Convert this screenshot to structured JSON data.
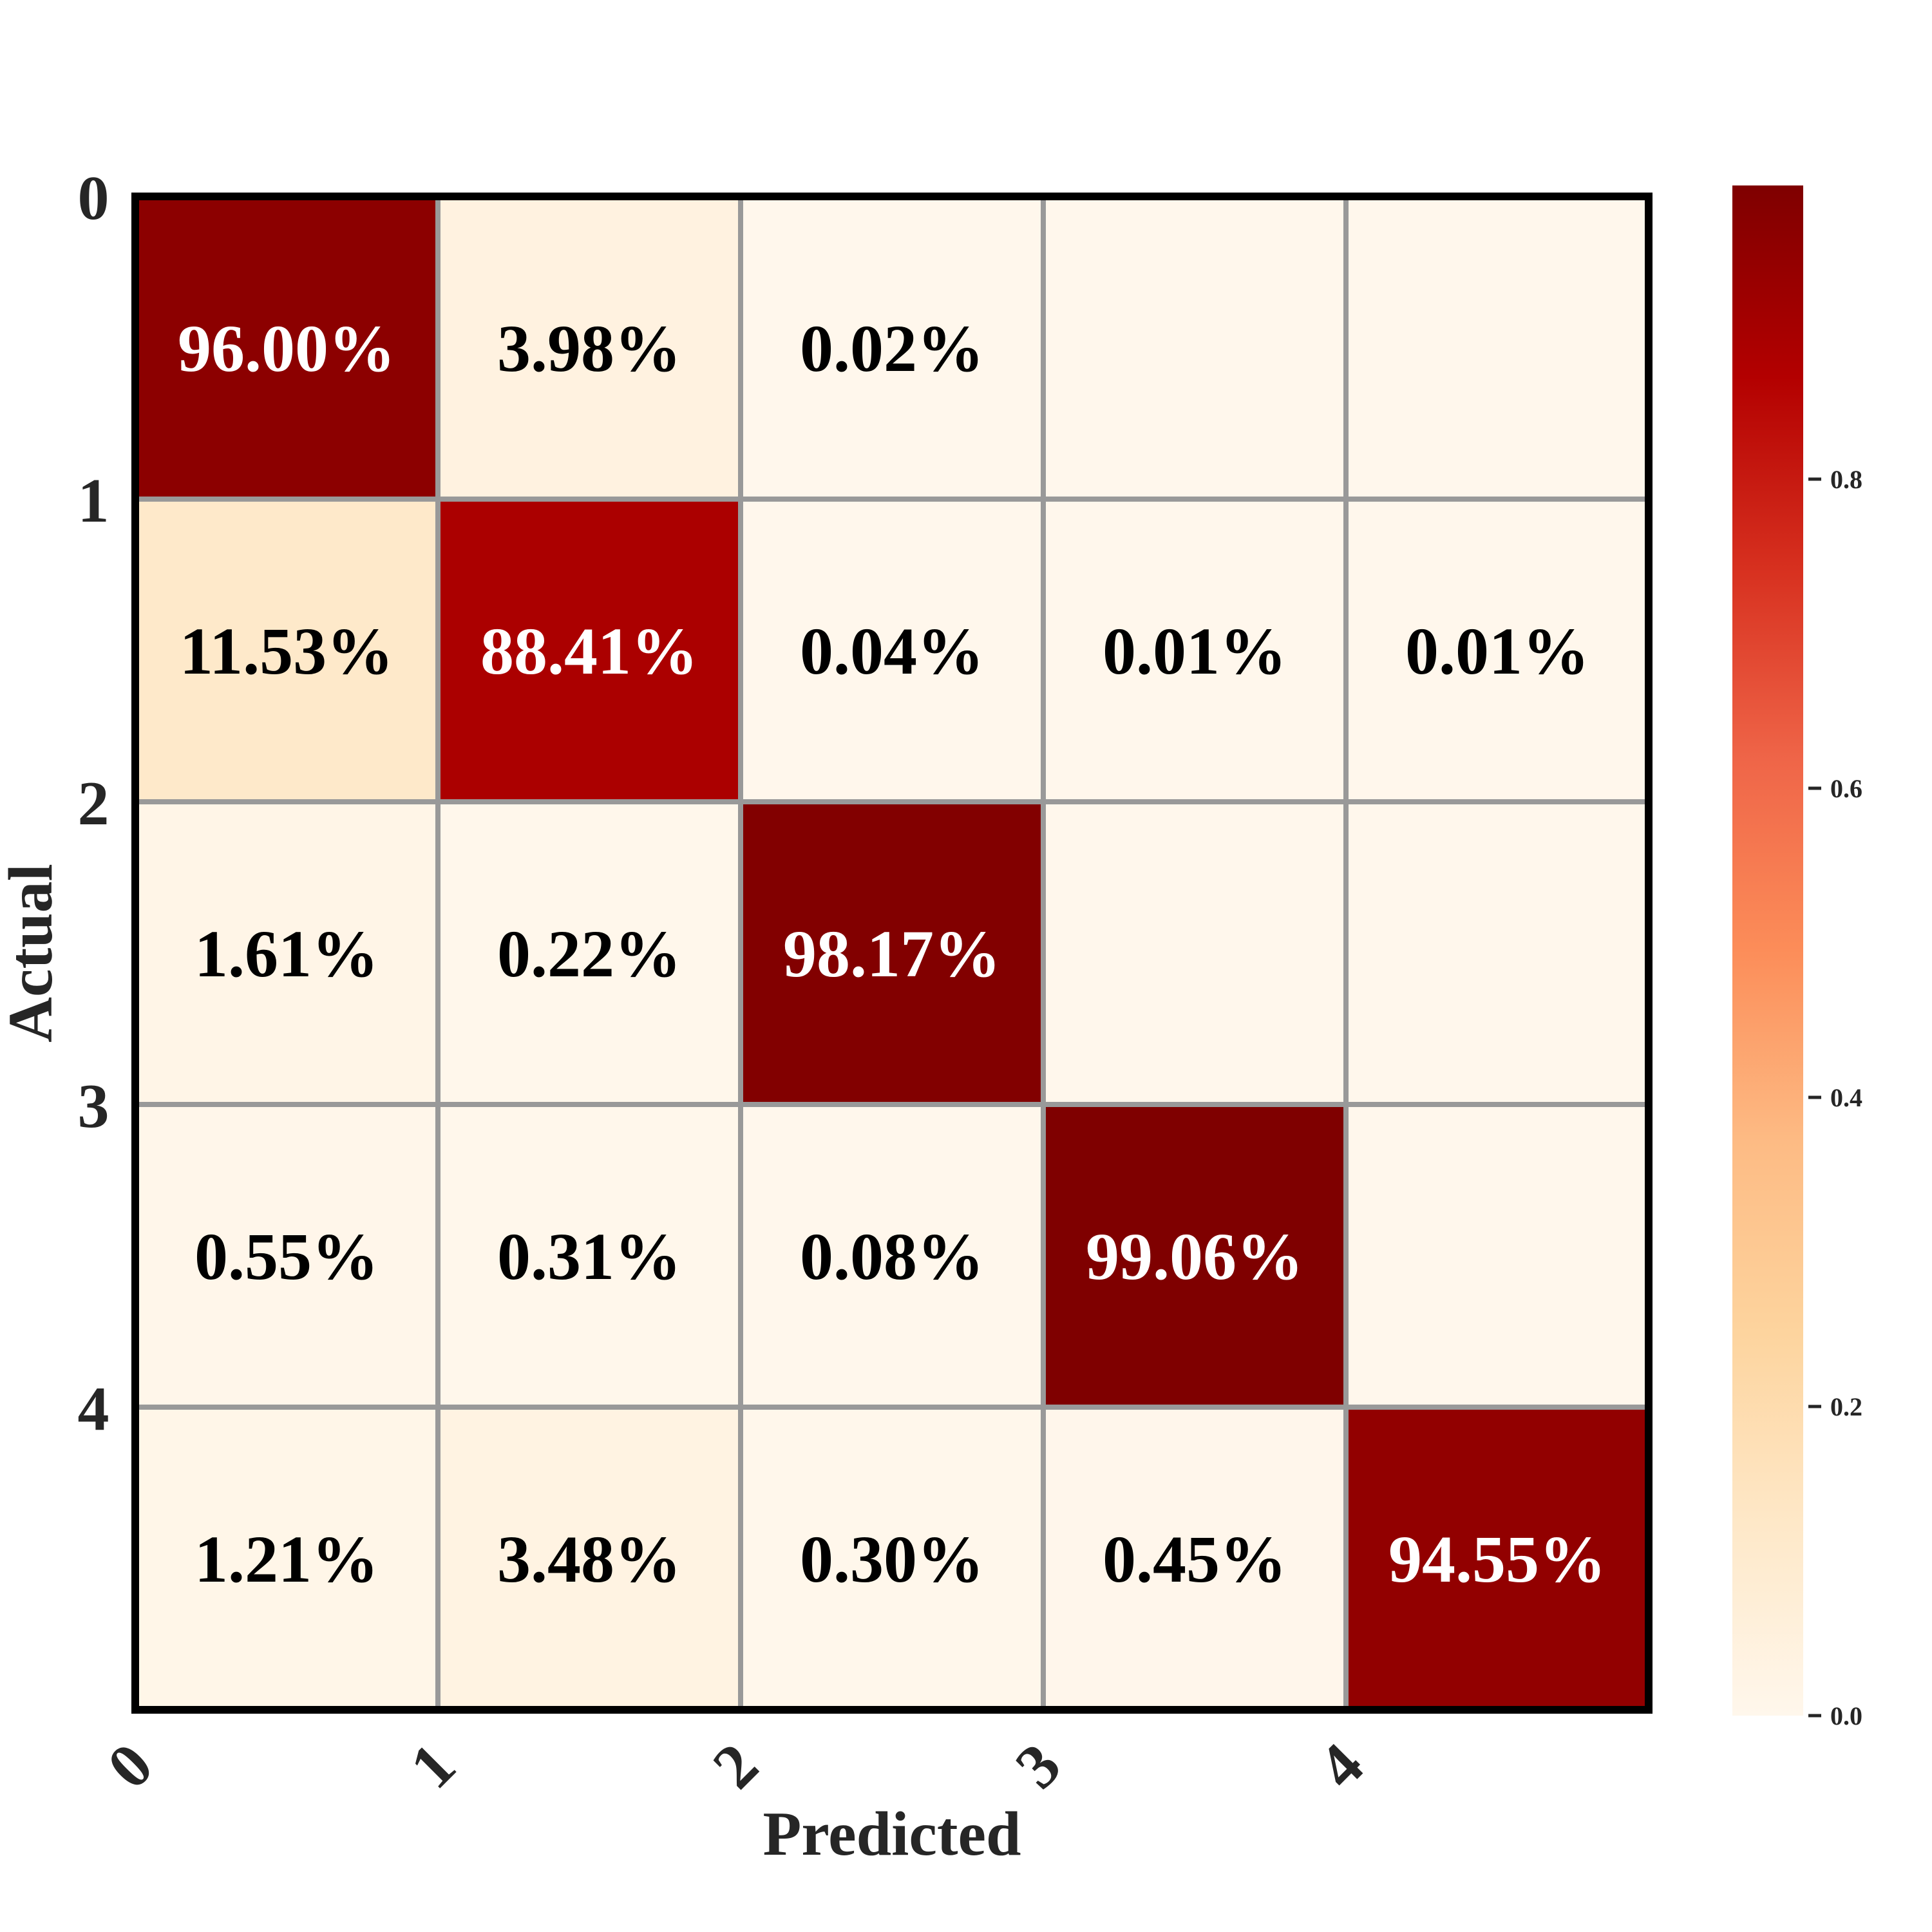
{
  "chart_data": {
    "type": "heatmap",
    "xlabel": "Predicted",
    "ylabel": "Actual",
    "x_tick_labels": [
      "0",
      "1",
      "2",
      "3",
      "4"
    ],
    "y_tick_labels": [
      "0",
      "1",
      "2",
      "3",
      "4"
    ],
    "values": [
      [
        0.96,
        0.0398,
        0.0002,
        0.0,
        0.0
      ],
      [
        0.1153,
        0.8841,
        0.0004,
        0.0001,
        0.0001
      ],
      [
        0.0161,
        0.0022,
        0.9817,
        0.0,
        0.0
      ],
      [
        0.0055,
        0.0031,
        0.0008,
        0.9906,
        0.0
      ],
      [
        0.0121,
        0.0348,
        0.003,
        0.0045,
        0.9455
      ]
    ],
    "cell_labels": [
      [
        "96.00%",
        "3.98%",
        "0.02%",
        "",
        ""
      ],
      [
        "11.53%",
        "88.41%",
        "0.04%",
        "0.01%",
        "0.01%"
      ],
      [
        "1.61%",
        "0.22%",
        "98.17%",
        "",
        ""
      ],
      [
        "0.55%",
        "0.31%",
        "0.08%",
        "99.06%",
        ""
      ],
      [
        "1.21%",
        "3.48%",
        "0.30%",
        "0.45%",
        "94.55%"
      ]
    ],
    "colorbar": {
      "colormap": "OrRd",
      "range": [
        0.0,
        0.99
      ],
      "ticks": [
        0.0,
        0.2,
        0.4,
        0.6,
        0.8
      ],
      "tick_labels": [
        "0.0",
        "0.2",
        "0.4",
        "0.6",
        "0.8"
      ]
    },
    "colors": {
      "low": "#fff7ec",
      "mid": "#f46d43",
      "high": "#7f0000",
      "grid": "#999999",
      "border": "#000000"
    }
  }
}
